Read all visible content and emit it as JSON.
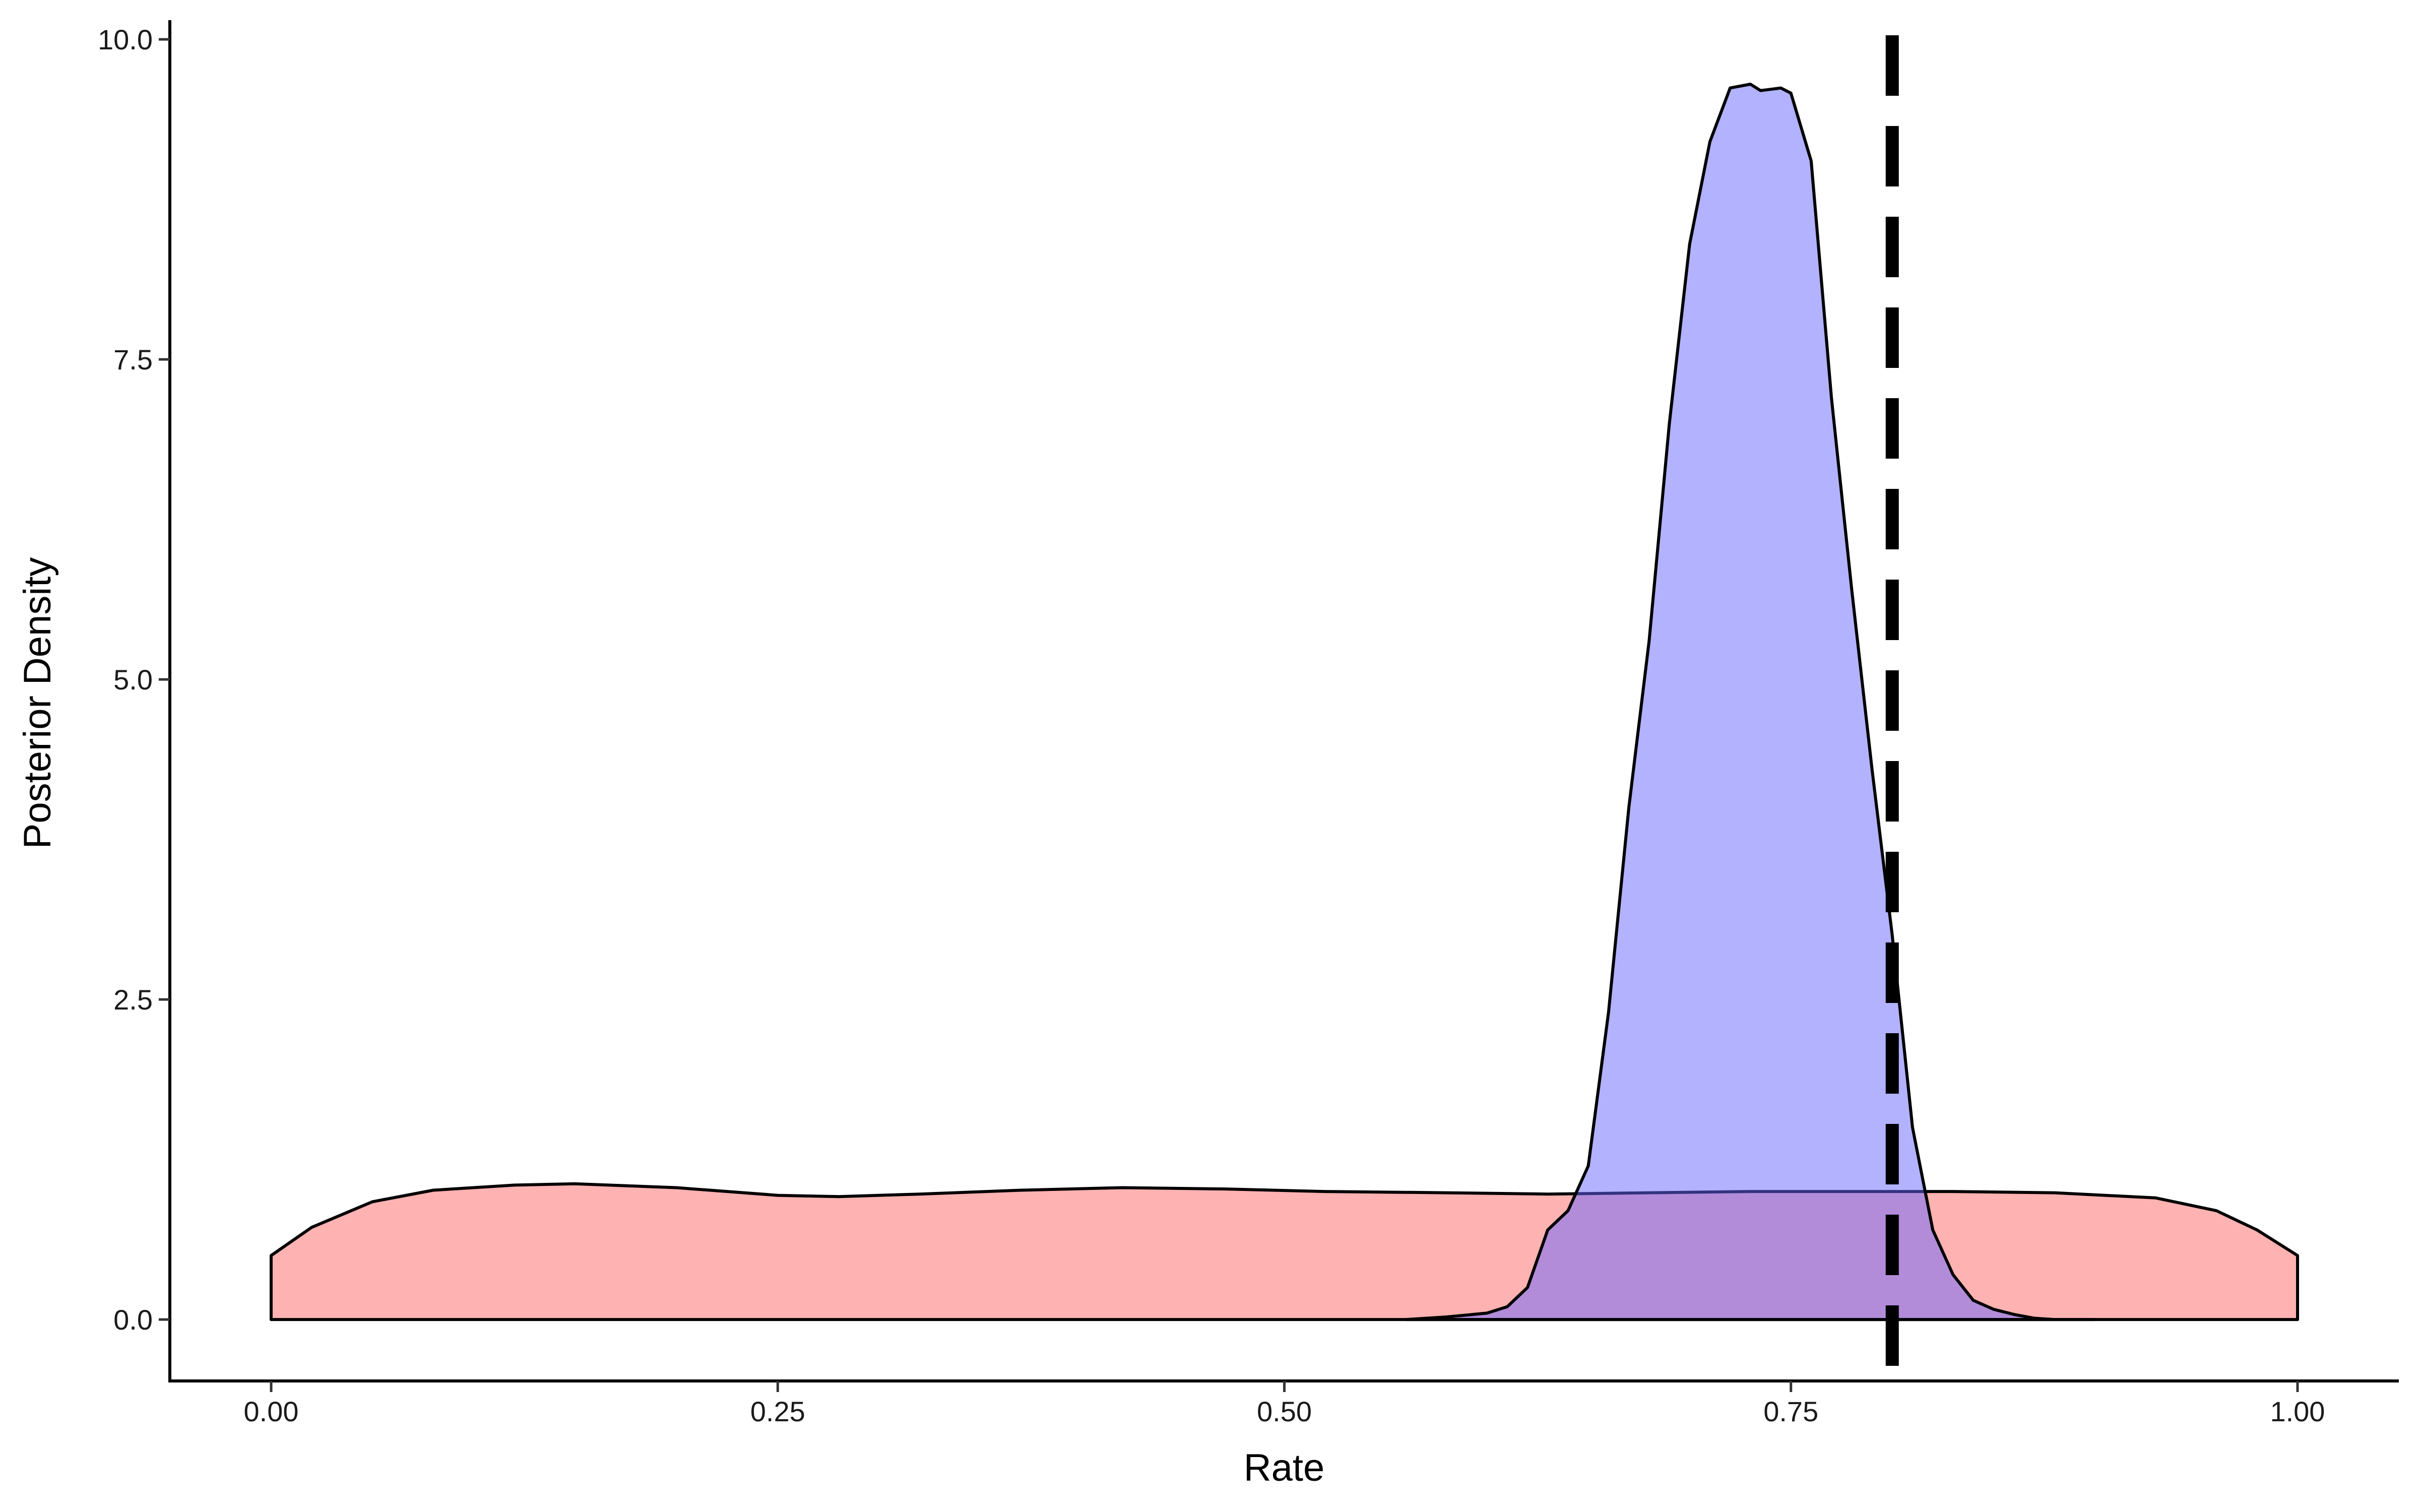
{
  "chart_data": {
    "type": "area",
    "title": "",
    "xlabel": "Rate",
    "ylabel": "Posterior Density",
    "xlim": [
      -0.05,
      1.05
    ],
    "ylim": [
      -0.48,
      10.15
    ],
    "x_ticks": [
      0.0,
      0.25,
      0.5,
      0.75,
      1.0
    ],
    "x_tick_labels": [
      "0.00",
      "0.25",
      "0.50",
      "0.75",
      "1.00"
    ],
    "y_ticks": [
      0.0,
      2.5,
      5.0,
      7.5,
      10.0
    ],
    "y_tick_labels": [
      "0.0",
      "2.5",
      "5.0",
      "7.5",
      "10.0"
    ],
    "grid": false,
    "legend": "none",
    "reference_line": {
      "x": 0.8,
      "style": "dashed",
      "color": "#000000"
    },
    "series": [
      {
        "fill": "#FF7F7F",
        "fill_opacity": 0.6,
        "x": [
          0.0,
          0.02,
          0.05,
          0.08,
          0.12,
          0.15,
          0.2,
          0.25,
          0.28,
          0.32,
          0.37,
          0.42,
          0.47,
          0.52,
          0.58,
          0.63,
          0.68,
          0.73,
          0.78,
          0.83,
          0.88,
          0.93,
          0.96,
          0.98,
          1.0
        ],
        "y": [
          0.5,
          0.72,
          0.92,
          1.01,
          1.05,
          1.06,
          1.03,
          0.97,
          0.96,
          0.98,
          1.01,
          1.03,
          1.02,
          1.0,
          0.99,
          0.98,
          0.99,
          1.0,
          1.0,
          1.0,
          0.99,
          0.95,
          0.85,
          0.7,
          0.5
        ]
      },
      {
        "fill": "#6666FF",
        "fill_opacity": 0.5,
        "x": [
          0.56,
          0.58,
          0.6,
          0.61,
          0.62,
          0.63,
          0.64,
          0.65,
          0.66,
          0.67,
          0.68,
          0.69,
          0.7,
          0.71,
          0.72,
          0.73,
          0.735,
          0.74,
          0.745,
          0.75,
          0.76,
          0.77,
          0.78,
          0.79,
          0.8,
          0.81,
          0.82,
          0.83,
          0.84,
          0.85,
          0.86,
          0.87,
          0.88,
          0.9
        ],
        "y": [
          0.0,
          0.02,
          0.05,
          0.1,
          0.25,
          0.7,
          0.85,
          1.2,
          2.4,
          4.0,
          5.3,
          7.0,
          8.4,
          9.2,
          9.62,
          9.65,
          9.6,
          9.61,
          9.62,
          9.58,
          9.05,
          7.2,
          5.7,
          4.3,
          3.0,
          1.5,
          0.7,
          0.35,
          0.15,
          0.08,
          0.04,
          0.01,
          0.0,
          0.0
        ]
      }
    ]
  }
}
